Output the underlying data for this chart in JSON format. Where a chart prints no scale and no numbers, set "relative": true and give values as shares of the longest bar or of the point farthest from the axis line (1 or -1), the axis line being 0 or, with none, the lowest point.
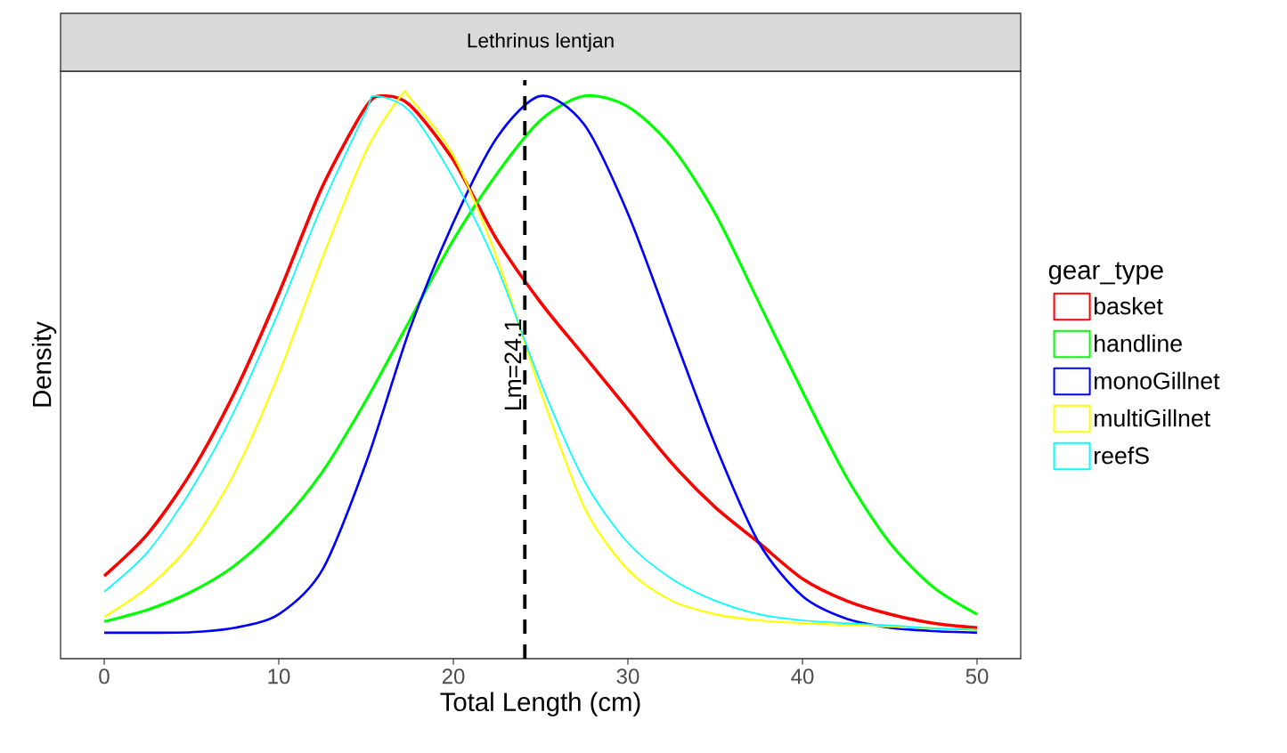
{
  "chart_data": {
    "type": "line",
    "title": "Lethrinus lentjan",
    "xlabel": "Total Length (cm)",
    "ylabel": "Density",
    "legend_title": "gear_type",
    "relative": true,
    "legend": "right",
    "xlim": [
      -2.5,
      52.5
    ],
    "xticks": [
      0,
      10,
      20,
      30,
      40,
      50
    ],
    "ref_lines": [
      {
        "axis": "x",
        "value": 24.1,
        "label": "Lm=24.1",
        "color": "#000000",
        "line_style": "dashed"
      }
    ],
    "series": [
      {
        "name": "basket",
        "color": "#ff0000",
        "x": [
          0,
          2.5,
          5,
          7.5,
          10,
          12.5,
          15,
          16,
          17.5,
          20,
          22.5,
          25,
          27.5,
          30,
          32.5,
          35,
          37.5,
          40,
          42.5,
          45,
          47.5,
          50
        ],
        "values": [
          0.147,
          0.222,
          0.332,
          0.475,
          0.649,
          0.839,
          0.981,
          1.0,
          0.984,
          0.886,
          0.744,
          0.633,
          0.538,
          0.443,
          0.348,
          0.269,
          0.206,
          0.142,
          0.103,
          0.079,
          0.063,
          0.055
        ]
      },
      {
        "name": "handline",
        "color": "#00ff00",
        "x": [
          0,
          2.5,
          5,
          7.5,
          10,
          12.5,
          15,
          17.5,
          20,
          22.5,
          25,
          27.5,
          30,
          32.5,
          35,
          37.5,
          40,
          42.5,
          45,
          47.5,
          50
        ],
        "values": [
          0.066,
          0.087,
          0.119,
          0.166,
          0.237,
          0.332,
          0.459,
          0.601,
          0.744,
          0.862,
          0.957,
          1.0,
          0.981,
          0.91,
          0.791,
          0.633,
          0.475,
          0.324,
          0.206,
          0.127,
          0.079
        ]
      },
      {
        "name": "monoGillnet",
        "color": "#0000ff",
        "x": [
          0,
          2.5,
          5,
          7.5,
          10,
          12.5,
          15,
          17.5,
          20,
          22.5,
          25,
          27.5,
          30,
          32.5,
          35,
          37.5,
          40,
          42.5,
          45,
          47.5,
          50
        ],
        "values": [
          0.046,
          0.046,
          0.047,
          0.055,
          0.079,
          0.158,
          0.348,
          0.585,
          0.775,
          0.926,
          1.0,
          0.949,
          0.791,
          0.585,
          0.38,
          0.206,
          0.111,
          0.071,
          0.055,
          0.049,
          0.046
        ]
      },
      {
        "name": "multiGillnet",
        "color": "#ffff00",
        "x": [
          0,
          2.5,
          5,
          7.5,
          10,
          12.5,
          15,
          17,
          17.5,
          20,
          22.5,
          25,
          27.5,
          30,
          32.5,
          35,
          37.5,
          40,
          42.5,
          45,
          47.5,
          50
        ],
        "values": [
          0.074,
          0.127,
          0.206,
          0.332,
          0.506,
          0.712,
          0.902,
          1.0,
          0.997,
          0.894,
          0.712,
          0.475,
          0.269,
          0.158,
          0.103,
          0.079,
          0.068,
          0.063,
          0.06,
          0.057,
          0.054,
          0.051
        ]
      },
      {
        "name": "reefS",
        "color": "#00ffff",
        "x": [
          0,
          2.5,
          5,
          7.5,
          10,
          12.5,
          15,
          15.5,
          17.5,
          20,
          22.5,
          25,
          27.5,
          30,
          32.5,
          35,
          37.5,
          40,
          42.5,
          45,
          47.5,
          50
        ],
        "values": [
          0.119,
          0.19,
          0.301,
          0.443,
          0.617,
          0.807,
          0.973,
          1.0,
          0.973,
          0.854,
          0.696,
          0.491,
          0.316,
          0.206,
          0.142,
          0.103,
          0.079,
          0.068,
          0.063,
          0.059,
          0.054,
          0.051
        ]
      }
    ]
  }
}
